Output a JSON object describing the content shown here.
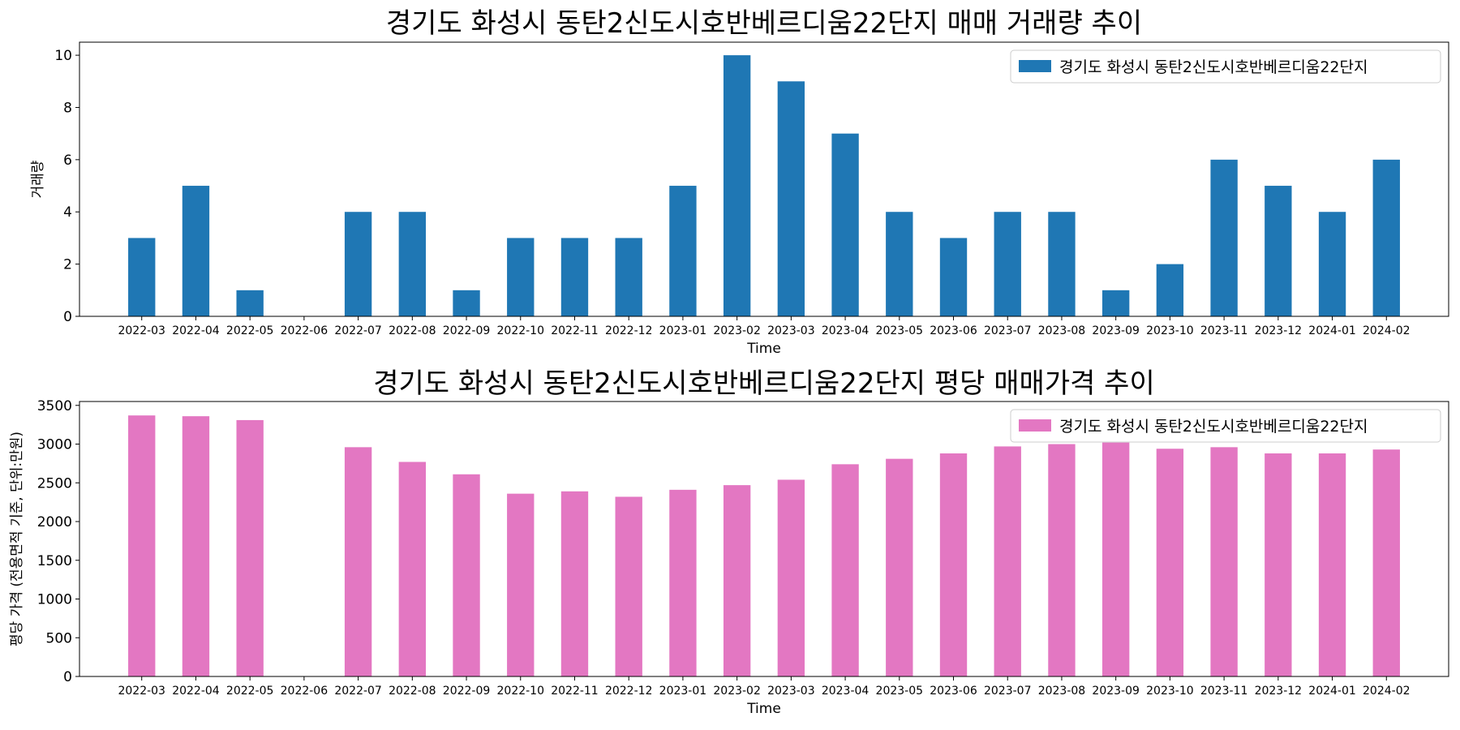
{
  "chart_data": [
    {
      "type": "bar",
      "title": "경기도 화성시 동탄2신도시호반베르디움22단지 매매 거래량 추이",
      "xlabel": "Time",
      "ylabel": "거래량",
      "ylim": [
        0,
        10.5
      ],
      "yticks": [
        0,
        2,
        4,
        6,
        8,
        10
      ],
      "grid": false,
      "legend_position": "top-right",
      "categories": [
        "2022-03",
        "2022-04",
        "2022-05",
        "2022-06",
        "2022-07",
        "2022-08",
        "2022-09",
        "2022-10",
        "2022-11",
        "2022-12",
        "2023-01",
        "2023-02",
        "2023-03",
        "2023-04",
        "2023-05",
        "2023-06",
        "2023-07",
        "2023-08",
        "2023-09",
        "2023-10",
        "2023-11",
        "2023-12",
        "2024-01",
        "2024-02"
      ],
      "series": [
        {
          "name": "경기도 화성시 동탄2신도시호반베르디움22단지",
          "color": "#1f77b4",
          "values": [
            3,
            5,
            1,
            0,
            4,
            4,
            1,
            3,
            3,
            3,
            5,
            10,
            9,
            7,
            4,
            3,
            4,
            4,
            1,
            2,
            6,
            5,
            4,
            6
          ]
        }
      ]
    },
    {
      "type": "bar",
      "title": "경기도 화성시 동탄2신도시호반베르디움22단지 평당 매매가격 추이",
      "xlabel": "Time",
      "ylabel": "평당 가격 (전용면적 기준, 단위:만원)",
      "ylim": [
        0,
        3550
      ],
      "yticks": [
        0,
        500,
        1000,
        1500,
        2000,
        2500,
        3000,
        3500
      ],
      "grid": false,
      "legend_position": "top-right",
      "categories": [
        "2022-03",
        "2022-04",
        "2022-05",
        "2022-06",
        "2022-07",
        "2022-08",
        "2022-09",
        "2022-10",
        "2022-11",
        "2022-12",
        "2023-01",
        "2023-02",
        "2023-03",
        "2023-04",
        "2023-05",
        "2023-06",
        "2023-07",
        "2023-08",
        "2023-09",
        "2023-10",
        "2023-11",
        "2023-12",
        "2024-01",
        "2024-02"
      ],
      "series": [
        {
          "name": "경기도 화성시 동탄2신도시호반베르디움22단지",
          "color": "#e377c2",
          "values": [
            3370,
            3360,
            3310,
            0,
            2960,
            2770,
            2610,
            2360,
            2390,
            2320,
            2410,
            2470,
            2540,
            2740,
            2810,
            2880,
            2970,
            3000,
            3020,
            2940,
            2960,
            2880,
            2880,
            2930
          ]
        }
      ]
    }
  ]
}
